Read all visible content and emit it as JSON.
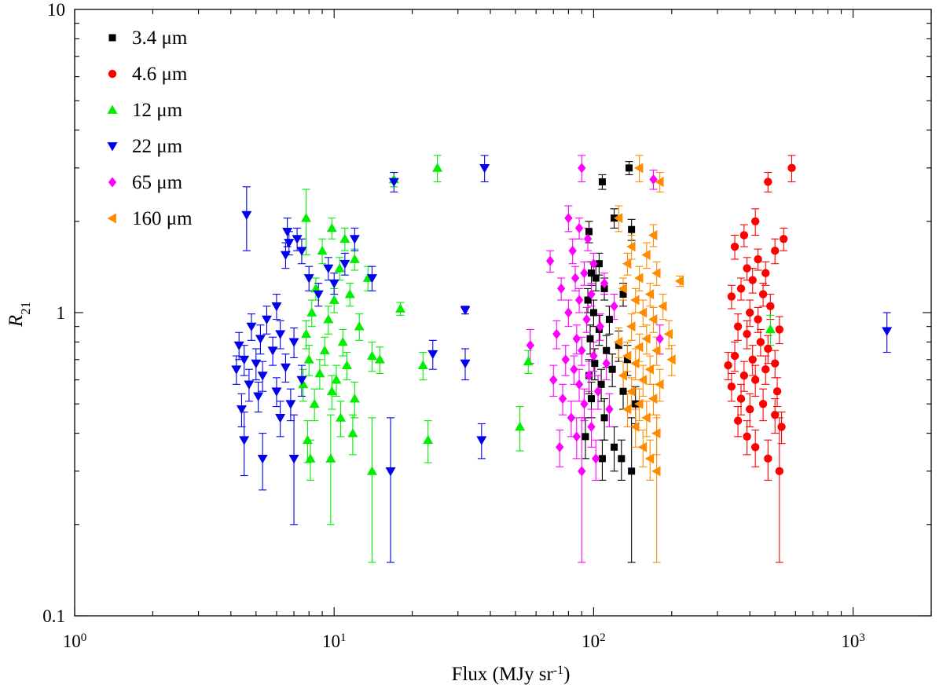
{
  "chart_data": {
    "type": "scatter",
    "x_scale": "log",
    "y_scale": "log",
    "xlim": [
      1,
      2000
    ],
    "ylim": [
      0.1,
      10
    ],
    "xlabel": "Flux (MJy sr-1)",
    "ylabel": "R21",
    "x_ticks": [
      {
        "value": 1,
        "base": "10",
        "exp": "0"
      },
      {
        "value": 10,
        "base": "10",
        "exp": "1"
      },
      {
        "value": 100,
        "base": "10",
        "exp": "2"
      },
      {
        "value": 1000,
        "base": "10",
        "exp": "3"
      }
    ],
    "y_ticks": [
      {
        "value": 0.1,
        "label": "0.1"
      },
      {
        "value": 1,
        "label": "1"
      },
      {
        "value": 10,
        "label": "10"
      }
    ],
    "legend_position": "top-left",
    "series": [
      {
        "name": "3.4 μm",
        "marker": "square",
        "color": "#000000",
        "points": [
          [
            137,
            3.0,
            0.15
          ],
          [
            108,
            2.7,
            0.15
          ],
          [
            120,
            2.05,
            0.15
          ],
          [
            140,
            1.88,
            0.15
          ],
          [
            96,
            1.85,
            0.15
          ],
          [
            105,
            1.45,
            0.12
          ],
          [
            98,
            1.35,
            0.12
          ],
          [
            102,
            1.3,
            0.12
          ],
          [
            110,
            1.2,
            0.1
          ],
          [
            130,
            1.15,
            0.1
          ],
          [
            95,
            1.1,
            0.1
          ],
          [
            100,
            1.0,
            0.1
          ],
          [
            115,
            0.95,
            0.1
          ],
          [
            105,
            0.88,
            0.1
          ],
          [
            97,
            0.82,
            0.09
          ],
          [
            125,
            0.78,
            0.09
          ],
          [
            112,
            0.75,
            0.09
          ],
          [
            135,
            0.7,
            0.08
          ],
          [
            101,
            0.68,
            0.08
          ],
          [
            118,
            0.65,
            0.08
          ],
          [
            96,
            0.62,
            0.08
          ],
          [
            107,
            0.58,
            0.07
          ],
          [
            130,
            0.55,
            0.07
          ],
          [
            98,
            0.52,
            0.07
          ],
          [
            145,
            0.5,
            0.07
          ],
          [
            110,
            0.45,
            0.07
          ],
          [
            93,
            0.39,
            0.06
          ],
          [
            120,
            0.36,
            0.06
          ],
          [
            108,
            0.33,
            0.05
          ],
          [
            128,
            0.33,
            0.05
          ],
          [
            140,
            0.3,
            0.15
          ]
        ]
      },
      {
        "name": "4.6 μm",
        "marker": "circle",
        "color": "#ff0000",
        "points": [
          [
            580,
            3.0,
            0.3
          ],
          [
            470,
            2.7,
            0.2
          ],
          [
            420,
            2.0,
            0.2
          ],
          [
            380,
            1.8,
            0.15
          ],
          [
            540,
            1.75,
            0.15
          ],
          [
            350,
            1.65,
            0.15
          ],
          [
            500,
            1.6,
            0.15
          ],
          [
            430,
            1.5,
            0.12
          ],
          [
            390,
            1.4,
            0.12
          ],
          [
            460,
            1.35,
            0.12
          ],
          [
            410,
            1.28,
            0.12
          ],
          [
            370,
            1.2,
            0.1
          ],
          [
            450,
            1.15,
            0.1
          ],
          [
            340,
            1.13,
            0.1
          ],
          [
            480,
            1.05,
            0.1
          ],
          [
            400,
            1.0,
            0.1
          ],
          [
            430,
            0.95,
            0.09
          ],
          [
            360,
            0.9,
            0.09
          ],
          [
            520,
            0.88,
            0.09
          ],
          [
            390,
            0.85,
            0.09
          ],
          [
            440,
            0.8,
            0.08
          ],
          [
            470,
            0.76,
            0.08
          ],
          [
            350,
            0.72,
            0.08
          ],
          [
            410,
            0.7,
            0.08
          ],
          [
            500,
            0.68,
            0.07
          ],
          [
            330,
            0.67,
            0.07
          ],
          [
            460,
            0.65,
            0.07
          ],
          [
            380,
            0.62,
            0.07
          ],
          [
            420,
            0.6,
            0.07
          ],
          [
            340,
            0.57,
            0.06
          ],
          [
            510,
            0.55,
            0.06
          ],
          [
            370,
            0.52,
            0.06
          ],
          [
            450,
            0.5,
            0.06
          ],
          [
            400,
            0.48,
            0.06
          ],
          [
            500,
            0.46,
            0.06
          ],
          [
            360,
            0.44,
            0.05
          ],
          [
            530,
            0.42,
            0.05
          ],
          [
            390,
            0.39,
            0.05
          ],
          [
            420,
            0.36,
            0.05
          ],
          [
            470,
            0.33,
            0.05
          ],
          [
            520,
            0.3,
            0.15
          ]
        ]
      },
      {
        "name": "12 μm",
        "marker": "triangle-up",
        "color": "#00ee00",
        "points": [
          [
            25,
            3.0,
            0.3
          ],
          [
            17,
            2.75,
            0.15
          ],
          [
            7.8,
            2.05,
            0.5
          ],
          [
            9.8,
            1.9,
            0.15
          ],
          [
            11,
            1.75,
            0.15
          ],
          [
            9,
            1.6,
            0.15
          ],
          [
            12,
            1.5,
            0.12
          ],
          [
            10.5,
            1.4,
            0.12
          ],
          [
            13.5,
            1.3,
            0.12
          ],
          [
            8.5,
            1.2,
            0.1
          ],
          [
            11.5,
            1.15,
            0.1
          ],
          [
            10,
            1.1,
            0.1
          ],
          [
            8.2,
            1.0,
            0.1
          ],
          [
            18,
            1.03,
            0.05
          ],
          [
            9.5,
            0.95,
            0.1
          ],
          [
            12.5,
            0.9,
            0.09
          ],
          [
            7.8,
            0.85,
            0.09
          ],
          [
            10.8,
            0.8,
            0.08
          ],
          [
            9.2,
            0.75,
            0.08
          ],
          [
            14,
            0.72,
            0.08
          ],
          [
            8,
            0.7,
            0.08
          ],
          [
            11.2,
            0.67,
            0.07
          ],
          [
            22,
            0.67,
            0.07
          ],
          [
            8.8,
            0.63,
            0.07
          ],
          [
            10.2,
            0.6,
            0.07
          ],
          [
            15,
            0.7,
            0.07
          ],
          [
            56,
            0.69,
            0.06
          ],
          [
            7.6,
            0.58,
            0.07
          ],
          [
            9.8,
            0.55,
            0.07
          ],
          [
            12,
            0.52,
            0.07
          ],
          [
            8.4,
            0.5,
            0.06
          ],
          [
            10.6,
            0.45,
            0.06
          ],
          [
            11.8,
            0.4,
            0.06
          ],
          [
            7.9,
            0.38,
            0.06
          ],
          [
            23,
            0.38,
            0.06
          ],
          [
            52,
            0.42,
            0.07
          ],
          [
            8.1,
            0.33,
            0.05
          ],
          [
            9.7,
            0.33,
            0.13
          ],
          [
            14,
            0.3,
            0.15
          ],
          [
            480,
            0.88,
            0.1
          ]
        ]
      },
      {
        "name": "22 μm",
        "marker": "triangle-down",
        "color": "#0000ee",
        "points": [
          [
            38,
            3.0,
            0.3
          ],
          [
            17,
            2.7,
            0.2
          ],
          [
            4.6,
            2.1,
            0.5
          ],
          [
            6.6,
            1.85,
            0.2
          ],
          [
            7.2,
            1.75,
            0.15
          ],
          [
            6.7,
            1.7,
            0.15
          ],
          [
            7.5,
            1.6,
            0.15
          ],
          [
            12,
            1.75,
            0.15
          ],
          [
            14,
            1.3,
            0.12
          ],
          [
            6.5,
            1.55,
            0.15
          ],
          [
            9.5,
            1.4,
            0.12
          ],
          [
            8,
            1.3,
            0.12
          ],
          [
            10,
            1.25,
            0.1
          ],
          [
            11,
            1.45,
            0.12
          ],
          [
            8.7,
            1.15,
            0.1
          ],
          [
            32,
            1.02,
            0.03
          ],
          [
            6,
            1.05,
            0.1
          ],
          [
            5.5,
            0.95,
            0.1
          ],
          [
            4.8,
            0.9,
            0.09
          ],
          [
            6.2,
            0.85,
            0.09
          ],
          [
            5.2,
            0.82,
            0.09
          ],
          [
            7,
            0.8,
            0.09
          ],
          [
            4.3,
            0.78,
            0.08
          ],
          [
            5.8,
            0.75,
            0.08
          ],
          [
            24,
            0.73,
            0.08
          ],
          [
            4.5,
            0.7,
            0.08
          ],
          [
            5,
            0.68,
            0.08
          ],
          [
            6.5,
            0.66,
            0.07
          ],
          [
            32,
            0.68,
            0.08
          ],
          [
            4.2,
            0.65,
            0.07
          ],
          [
            5.3,
            0.62,
            0.07
          ],
          [
            7.5,
            0.6,
            0.07
          ],
          [
            4.7,
            0.58,
            0.07
          ],
          [
            6,
            0.55,
            0.06
          ],
          [
            5.1,
            0.53,
            0.06
          ],
          [
            6.8,
            0.5,
            0.06
          ],
          [
            4.4,
            0.48,
            0.06
          ],
          [
            6.2,
            0.45,
            0.06
          ],
          [
            4.5,
            0.38,
            0.09
          ],
          [
            37,
            0.38,
            0.05
          ],
          [
            5.3,
            0.33,
            0.07
          ],
          [
            7,
            0.33,
            0.13
          ],
          [
            16.5,
            0.3,
            0.15
          ],
          [
            1350,
            0.87,
            0.13
          ]
        ]
      },
      {
        "name": "65 μm",
        "marker": "diamond",
        "color": "#ff00ff",
        "points": [
          [
            90,
            3.0,
            0.3
          ],
          [
            170,
            2.75,
            0.2
          ],
          [
            80,
            2.05,
            0.2
          ],
          [
            88,
            1.9,
            0.15
          ],
          [
            95,
            1.75,
            0.15
          ],
          [
            83,
            1.6,
            0.15
          ],
          [
            68,
            1.48,
            0.12
          ],
          [
            100,
            1.45,
            0.12
          ],
          [
            92,
            1.35,
            0.12
          ],
          [
            85,
            1.3,
            0.12
          ],
          [
            110,
            1.25,
            0.1
          ],
          [
            75,
            1.2,
            0.1
          ],
          [
            98,
            1.15,
            0.1
          ],
          [
            88,
            1.1,
            0.1
          ],
          [
            120,
            1.05,
            0.1
          ],
          [
            80,
            1.0,
            0.1
          ],
          [
            94,
            0.95,
            0.09
          ],
          [
            106,
            0.9,
            0.09
          ],
          [
            72,
            0.85,
            0.09
          ],
          [
            86,
            0.82,
            0.09
          ],
          [
            180,
            0.82,
            0.09
          ],
          [
            57,
            0.78,
            0.1
          ],
          [
            90,
            0.75,
            0.08
          ],
          [
            100,
            0.72,
            0.08
          ],
          [
            78,
            0.7,
            0.08
          ],
          [
            112,
            0.68,
            0.08
          ],
          [
            84,
            0.65,
            0.07
          ],
          [
            96,
            0.62,
            0.07
          ],
          [
            70,
            0.6,
            0.07
          ],
          [
            88,
            0.58,
            0.07
          ],
          [
            104,
            0.55,
            0.07
          ],
          [
            76,
            0.52,
            0.06
          ],
          [
            92,
            0.5,
            0.06
          ],
          [
            115,
            0.48,
            0.06
          ],
          [
            82,
            0.45,
            0.06
          ],
          [
            98,
            0.42,
            0.06
          ],
          [
            86,
            0.39,
            0.06
          ],
          [
            74,
            0.36,
            0.05
          ],
          [
            102,
            0.33,
            0.05
          ],
          [
            90,
            0.3,
            0.15
          ]
        ]
      },
      {
        "name": "160 μm",
        "marker": "triangle-left",
        "color": "#ff8c00",
        "points": [
          [
            150,
            3.0,
            0.3
          ],
          [
            180,
            2.7,
            0.2
          ],
          [
            125,
            2.05,
            0.2
          ],
          [
            170,
            1.8,
            0.15
          ],
          [
            140,
            1.65,
            0.15
          ],
          [
            160,
            1.55,
            0.15
          ],
          [
            135,
            1.45,
            0.12
          ],
          [
            175,
            1.35,
            0.12
          ],
          [
            150,
            1.3,
            0.12
          ],
          [
            215,
            1.27,
            0.05
          ],
          [
            130,
            1.2,
            0.1
          ],
          [
            165,
            1.15,
            0.1
          ],
          [
            145,
            1.1,
            0.1
          ],
          [
            185,
            1.05,
            0.1
          ],
          [
            155,
            1.0,
            0.1
          ],
          [
            170,
            0.95,
            0.09
          ],
          [
            140,
            0.9,
            0.09
          ],
          [
            195,
            0.85,
            0.09
          ],
          [
            160,
            0.82,
            0.09
          ],
          [
            125,
            0.8,
            0.09
          ],
          [
            150,
            0.77,
            0.08
          ],
          [
            175,
            0.75,
            0.08
          ],
          [
            135,
            0.72,
            0.08
          ],
          [
            200,
            0.7,
            0.08
          ],
          [
            145,
            0.68,
            0.08
          ],
          [
            165,
            0.65,
            0.07
          ],
          [
            130,
            0.62,
            0.07
          ],
          [
            155,
            0.6,
            0.07
          ],
          [
            180,
            0.58,
            0.07
          ],
          [
            140,
            0.55,
            0.06
          ],
          [
            170,
            0.52,
            0.06
          ],
          [
            150,
            0.5,
            0.06
          ],
          [
            135,
            0.48,
            0.06
          ],
          [
            160,
            0.45,
            0.06
          ],
          [
            145,
            0.42,
            0.06
          ],
          [
            175,
            0.4,
            0.06
          ],
          [
            155,
            0.36,
            0.05
          ],
          [
            165,
            0.33,
            0.05
          ],
          [
            175,
            0.3,
            0.15
          ]
        ]
      }
    ]
  }
}
